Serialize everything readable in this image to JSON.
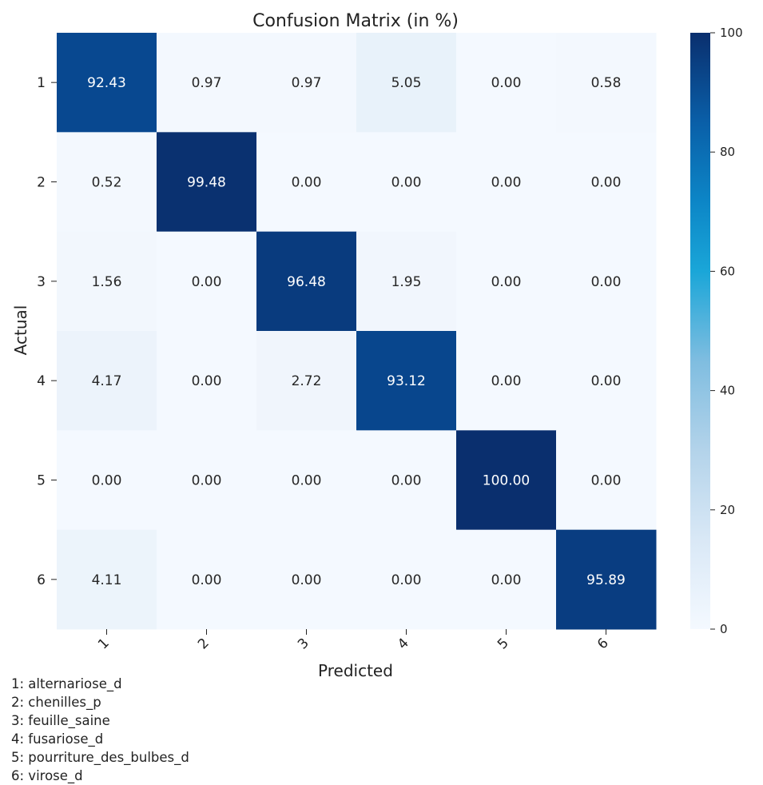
{
  "chart_data": {
    "type": "heatmap",
    "title": "Confusion Matrix (in %)",
    "xlabel": "Predicted",
    "ylabel": "Actual",
    "x_categories": [
      "1",
      "2",
      "3",
      "4",
      "5",
      "6"
    ],
    "y_categories": [
      "1",
      "2",
      "3",
      "4",
      "5",
      "6"
    ],
    "values": [
      [
        92.43,
        0.97,
        0.97,
        5.05,
        0.0,
        0.58
      ],
      [
        0.52,
        99.48,
        0.0,
        0.0,
        0.0,
        0.0
      ],
      [
        1.56,
        0.0,
        96.48,
        1.95,
        0.0,
        0.0
      ],
      [
        4.17,
        0.0,
        2.72,
        93.12,
        0.0,
        0.0
      ],
      [
        0.0,
        0.0,
        0.0,
        0.0,
        100.0,
        0.0
      ],
      [
        4.11,
        0.0,
        0.0,
        0.0,
        0.0,
        95.89
      ]
    ],
    "value_format_decimals": 2,
    "colormap": "Blues",
    "colorbar": {
      "range": [
        0,
        100
      ],
      "ticks": [
        "0",
        "20",
        "40",
        "60",
        "80",
        "100"
      ]
    },
    "grid": false
  },
  "class_legend": [
    "1: alternariose_d",
    "2: chenilles_p",
    "3: feuille_saine",
    "4: fusariose_d",
    "5: pourriture_des_bulbes_d",
    "6: virose_d"
  ]
}
